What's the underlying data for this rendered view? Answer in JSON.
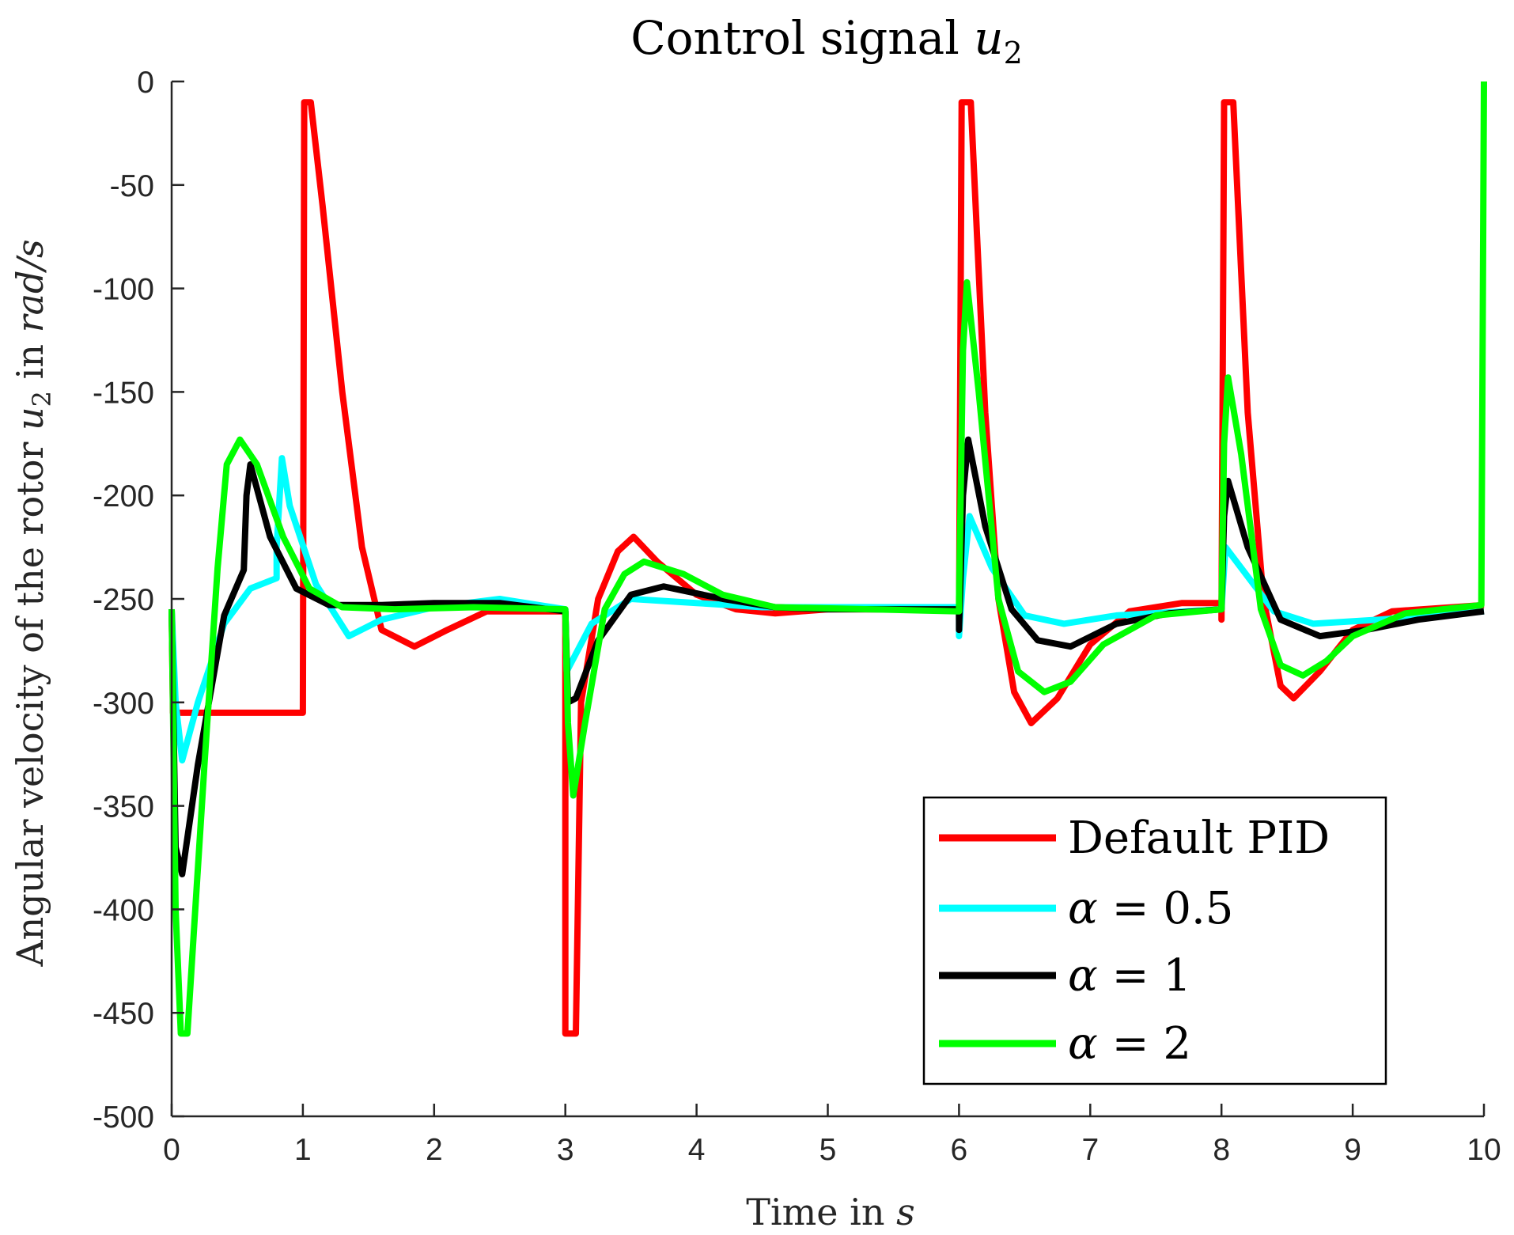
{
  "chart_data": {
    "type": "line",
    "title": "Control signal",
    "title_symbol": "u",
    "title_subscript": "2",
    "xlabel_text": "Time in",
    "xlabel_unit": "s",
    "ylabel_text": "Angular velocity of the rotor",
    "ylabel_symbol": "u",
    "ylabel_subscript": "2",
    "ylabel_mid": "in",
    "ylabel_unit": "rad/s",
    "xlim": [
      0,
      10
    ],
    "ylim": [
      -500,
      0
    ],
    "xticks": [
      0,
      1,
      2,
      3,
      4,
      5,
      6,
      7,
      8,
      9,
      10
    ],
    "yticks": [
      0,
      -50,
      -100,
      -150,
      -200,
      -250,
      -300,
      -350,
      -400,
      -450,
      -500
    ],
    "grid": false,
    "legend_position": "bottom-right",
    "series": [
      {
        "name": "Default PID",
        "label_prefix": "",
        "label_value": "Default PID",
        "color": "#ff0000",
        "points": [
          [
            0,
            -255
          ],
          [
            0.01,
            -305
          ],
          [
            1.0,
            -305
          ],
          [
            1.01,
            -10
          ],
          [
            1.06,
            -10
          ],
          [
            1.15,
            -60
          ],
          [
            1.3,
            -150
          ],
          [
            1.45,
            -225
          ],
          [
            1.6,
            -265
          ],
          [
            1.85,
            -273
          ],
          [
            2.1,
            -265
          ],
          [
            2.4,
            -256
          ],
          [
            3.0,
            -256
          ],
          [
            3.0,
            -460
          ],
          [
            3.08,
            -460
          ],
          [
            3.12,
            -300
          ],
          [
            3.25,
            -250
          ],
          [
            3.4,
            -227
          ],
          [
            3.52,
            -220
          ],
          [
            3.7,
            -232
          ],
          [
            4.0,
            -248
          ],
          [
            4.3,
            -255
          ],
          [
            4.6,
            -257
          ],
          [
            5.0,
            -255
          ],
          [
            6.0,
            -255
          ],
          [
            6.0,
            -260
          ],
          [
            6.02,
            -10
          ],
          [
            6.09,
            -10
          ],
          [
            6.2,
            -160
          ],
          [
            6.3,
            -250
          ],
          [
            6.42,
            -295
          ],
          [
            6.55,
            -310
          ],
          [
            6.75,
            -298
          ],
          [
            7.0,
            -272
          ],
          [
            7.3,
            -256
          ],
          [
            7.7,
            -252
          ],
          [
            8.0,
            -252
          ],
          [
            8.0,
            -260
          ],
          [
            8.02,
            -10
          ],
          [
            8.09,
            -10
          ],
          [
            8.2,
            -160
          ],
          [
            8.32,
            -250
          ],
          [
            8.45,
            -292
          ],
          [
            8.55,
            -298
          ],
          [
            8.75,
            -285
          ],
          [
            9.0,
            -265
          ],
          [
            9.3,
            -256
          ],
          [
            10.0,
            -253
          ]
        ]
      },
      {
        "name": "alpha = 0.5",
        "label_prefix": "α",
        "label_value": "0.5",
        "color": "#00ffff",
        "points": [
          [
            0,
            -255
          ],
          [
            0.03,
            -300
          ],
          [
            0.08,
            -328
          ],
          [
            0.2,
            -300
          ],
          [
            0.4,
            -262
          ],
          [
            0.6,
            -245
          ],
          [
            0.8,
            -240
          ],
          [
            0.8,
            -225
          ],
          [
            0.84,
            -182
          ],
          [
            0.9,
            -205
          ],
          [
            1.1,
            -243
          ],
          [
            1.35,
            -268
          ],
          [
            1.6,
            -260
          ],
          [
            2.0,
            -254
          ],
          [
            2.5,
            -250
          ],
          [
            2.9,
            -254
          ],
          [
            3.0,
            -255
          ],
          [
            3.01,
            -285
          ],
          [
            3.2,
            -262
          ],
          [
            3.5,
            -250
          ],
          [
            4.0,
            -252
          ],
          [
            4.5,
            -254
          ],
          [
            6.0,
            -254
          ],
          [
            6.0,
            -268
          ],
          [
            6.03,
            -240
          ],
          [
            6.08,
            -210
          ],
          [
            6.25,
            -235
          ],
          [
            6.5,
            -258
          ],
          [
            6.8,
            -262
          ],
          [
            7.2,
            -258
          ],
          [
            8.0,
            -255
          ],
          [
            8.03,
            -225
          ],
          [
            8.15,
            -235
          ],
          [
            8.4,
            -256
          ],
          [
            8.7,
            -262
          ],
          [
            9.2,
            -260
          ],
          [
            10.0,
            -256
          ]
        ]
      },
      {
        "name": "alpha = 1",
        "label_prefix": "α",
        "label_value": "1",
        "color": "#000000",
        "points": [
          [
            0,
            -255
          ],
          [
            0.03,
            -370
          ],
          [
            0.08,
            -383
          ],
          [
            0.2,
            -330
          ],
          [
            0.4,
            -258
          ],
          [
            0.55,
            -236
          ],
          [
            0.57,
            -200
          ],
          [
            0.6,
            -185
          ],
          [
            0.75,
            -220
          ],
          [
            0.95,
            -245
          ],
          [
            1.2,
            -253
          ],
          [
            1.6,
            -253
          ],
          [
            2.0,
            -252
          ],
          [
            2.5,
            -252
          ],
          [
            3.0,
            -256
          ],
          [
            3.02,
            -300
          ],
          [
            3.08,
            -298
          ],
          [
            3.25,
            -270
          ],
          [
            3.5,
            -248
          ],
          [
            3.75,
            -244
          ],
          [
            4.2,
            -250
          ],
          [
            4.6,
            -254
          ],
          [
            5.0,
            -255
          ],
          [
            6.0,
            -255
          ],
          [
            6.0,
            -265
          ],
          [
            6.03,
            -200
          ],
          [
            6.07,
            -173
          ],
          [
            6.2,
            -215
          ],
          [
            6.4,
            -255
          ],
          [
            6.6,
            -270
          ],
          [
            6.85,
            -273
          ],
          [
            7.2,
            -262
          ],
          [
            7.6,
            -257
          ],
          [
            8.0,
            -255
          ],
          [
            8.02,
            -210
          ],
          [
            8.05,
            -193
          ],
          [
            8.2,
            -225
          ],
          [
            8.45,
            -260
          ],
          [
            8.75,
            -268
          ],
          [
            9.1,
            -265
          ],
          [
            9.5,
            -260
          ],
          [
            10.0,
            -256
          ]
        ]
      },
      {
        "name": "alpha = 2",
        "label_prefix": "α",
        "label_value": "2",
        "color": "#00ff00",
        "points": [
          [
            0,
            -255
          ],
          [
            0.03,
            -400
          ],
          [
            0.07,
            -460
          ],
          [
            0.12,
            -460
          ],
          [
            0.25,
            -330
          ],
          [
            0.35,
            -235
          ],
          [
            0.42,
            -185
          ],
          [
            0.52,
            -173
          ],
          [
            0.65,
            -185
          ],
          [
            0.85,
            -220
          ],
          [
            1.05,
            -245
          ],
          [
            1.3,
            -254
          ],
          [
            1.7,
            -255
          ],
          [
            2.3,
            -254
          ],
          [
            3.0,
            -255
          ],
          [
            3.02,
            -310
          ],
          [
            3.06,
            -345
          ],
          [
            3.15,
            -310
          ],
          [
            3.3,
            -255
          ],
          [
            3.45,
            -238
          ],
          [
            3.6,
            -232
          ],
          [
            3.9,
            -238
          ],
          [
            4.2,
            -248
          ],
          [
            4.6,
            -254
          ],
          [
            6.0,
            -256
          ],
          [
            6.0,
            -250
          ],
          [
            6.03,
            -130
          ],
          [
            6.06,
            -97
          ],
          [
            6.15,
            -150
          ],
          [
            6.3,
            -250
          ],
          [
            6.45,
            -285
          ],
          [
            6.65,
            -295
          ],
          [
            6.85,
            -290
          ],
          [
            7.1,
            -272
          ],
          [
            7.5,
            -258
          ],
          [
            8.0,
            -255
          ],
          [
            8.02,
            -175
          ],
          [
            8.05,
            -143
          ],
          [
            8.15,
            -180
          ],
          [
            8.3,
            -255
          ],
          [
            8.45,
            -282
          ],
          [
            8.62,
            -287
          ],
          [
            8.8,
            -280
          ],
          [
            9.0,
            -268
          ],
          [
            9.4,
            -257
          ],
          [
            9.98,
            -253
          ],
          [
            10.0,
            0
          ]
        ]
      }
    ]
  }
}
